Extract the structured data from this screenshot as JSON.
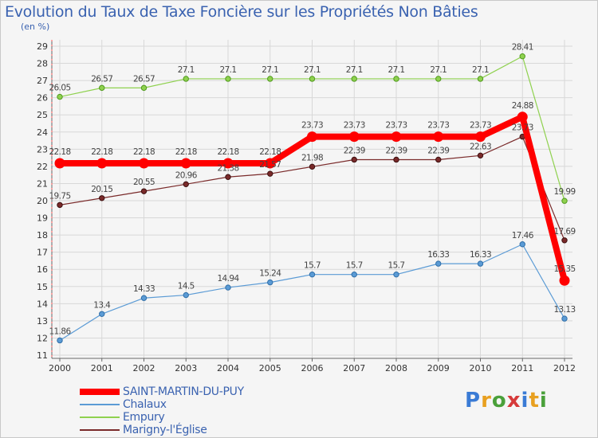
{
  "title": "Evolution du Taux de Taxe Foncière sur les Propriétés Non Bâties",
  "subtitle": "(en %)",
  "logo": "Proxiti",
  "colors": {
    "title": "#3a62b0",
    "grid": "#d8d8d8",
    "axis": "#666666"
  },
  "chart_data": {
    "type": "line",
    "title": "Evolution du Taux de Taxe Foncière sur les Propriétés Non Bâties",
    "ylabel": "(en %)",
    "xlabel": "",
    "x": [
      "2000",
      "2001",
      "2002",
      "2003",
      "2004",
      "2005",
      "2006",
      "2007",
      "2008",
      "2009",
      "2010",
      "2011",
      "2012"
    ],
    "ylim": [
      11,
      29
    ],
    "yticks": [
      11,
      12,
      13,
      14,
      15,
      16,
      17,
      18,
      19,
      20,
      21,
      22,
      23,
      24,
      25,
      26,
      27,
      28,
      29
    ],
    "grid": true,
    "legend_position": "bottom-left",
    "series": [
      {
        "name": "SAINT-MARTIN-DU-PUY",
        "color": "#ff0000",
        "values": [
          22.18,
          22.18,
          22.18,
          22.18,
          22.18,
          22.18,
          23.73,
          23.73,
          23.73,
          23.73,
          23.73,
          24.88,
          15.35
        ],
        "labels": [
          "22.18",
          "22.18",
          "22.18",
          "22.18",
          "22.18",
          "22.18",
          "23.73",
          "23.73",
          "23.73",
          "23.73",
          "23.73",
          "24.88",
          "15.35"
        ]
      },
      {
        "name": "Chalaux",
        "color": "#5b9bd5",
        "values": [
          11.86,
          13.4,
          14.33,
          14.5,
          14.94,
          15.24,
          15.7,
          15.7,
          15.7,
          16.33,
          16.33,
          17.46,
          13.13
        ],
        "labels": [
          "11.86",
          "13.4",
          "14.33",
          "14.5",
          "14.94",
          "15.24",
          "15.7",
          "15.7",
          "15.7",
          "16.33",
          "16.33",
          "17.46",
          "13.13"
        ]
      },
      {
        "name": "Empury",
        "color": "#8fd14f",
        "values": [
          26.05,
          26.57,
          26.57,
          27.1,
          27.1,
          27.1,
          27.1,
          27.1,
          27.1,
          27.1,
          27.1,
          28.41,
          19.99
        ],
        "labels": [
          "26.05",
          "26.57",
          "26.57",
          "27.1",
          "27.1",
          "27.1",
          "27.1",
          "27.1",
          "27.1",
          "27.1",
          "27.1",
          "28.41",
          "19.99"
        ]
      },
      {
        "name": "Marigny-l'Église",
        "color": "#7a2a2a",
        "values": [
          19.75,
          20.15,
          20.55,
          20.96,
          21.38,
          21.57,
          21.98,
          22.39,
          22.39,
          22.39,
          22.63,
          23.73,
          17.69
        ],
        "labels": [
          "19.75",
          "20.15",
          "20.55",
          "20.96",
          "21.38",
          "21.57",
          "21.98",
          "22.39",
          "22.39",
          "22.39",
          "22.63",
          "23.73",
          "17.69"
        ]
      }
    ]
  }
}
